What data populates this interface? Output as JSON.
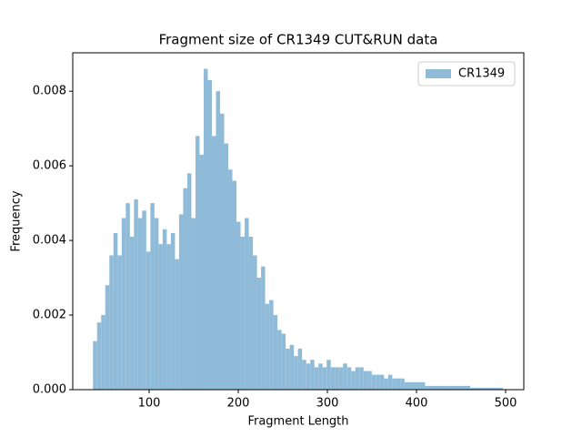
{
  "chart_data": {
    "type": "histogram",
    "title": "Fragment size of CR1349 CUT&RUN data",
    "xlabel": "Fragment Length",
    "ylabel": "Frequency",
    "bins": [
      37,
      41.6,
      46.2,
      50.8,
      55.4,
      60,
      64.6,
      69.2,
      73.8,
      78.4,
      83,
      87.6,
      92.2,
      96.8,
      101.4,
      106,
      110.6,
      115.2,
      119.8,
      124.4,
      129,
      133.6,
      138.2,
      142.8,
      147.4,
      152,
      156.6,
      161.2,
      165.8,
      170.4,
      175,
      179.6,
      184.2,
      188.8,
      193.4,
      198,
      202.6,
      207.2,
      211.8,
      216.4,
      221,
      225.6,
      230.2,
      234.8,
      239.4,
      244,
      248.6,
      253.2,
      257.8,
      262.4,
      267,
      271.6,
      276.2,
      280.8,
      285.4,
      290,
      294.6,
      299.2,
      303.8,
      308.4,
      313,
      317.6,
      322.2,
      326.8,
      331.4,
      336,
      340.6,
      345.2,
      349.8,
      354.4,
      359,
      363.6,
      368.2,
      372.8,
      377.4,
      382,
      386.6,
      391.2,
      395.8,
      400.4,
      405,
      409.6,
      414.2,
      418.8,
      423.4,
      428,
      432.6,
      437.2,
      441.8,
      446.4,
      451,
      455.6,
      460.2,
      464.8,
      469.4,
      474,
      478.6,
      483.2,
      487.8,
      492.4,
      497
    ],
    "series": [
      {
        "name": "CR1349",
        "color": "#8fbbd9",
        "values": [
          0.0013,
          0.0018,
          0.002,
          0.0028,
          0.0036,
          0.0042,
          0.0036,
          0.0046,
          0.005,
          0.0041,
          0.0051,
          0.0046,
          0.0048,
          0.0037,
          0.005,
          0.0046,
          0.0039,
          0.0043,
          0.0039,
          0.0042,
          0.0035,
          0.0047,
          0.0054,
          0.0058,
          0.0046,
          0.0068,
          0.0063,
          0.0086,
          0.0083,
          0.0068,
          0.008,
          0.0074,
          0.0066,
          0.0059,
          0.0056,
          0.0045,
          0.0041,
          0.0046,
          0.0041,
          0.0036,
          0.003,
          0.0033,
          0.0023,
          0.0024,
          0.002,
          0.0016,
          0.0015,
          0.0011,
          0.0012,
          0.0009,
          0.0011,
          0.0008,
          0.0007,
          0.0008,
          0.0006,
          0.0007,
          0.0006,
          0.0008,
          0.0006,
          0.0006,
          0.0006,
          0.0007,
          0.0006,
          0.0005,
          0.0006,
          0.0006,
          0.0005,
          0.0005,
          0.0004,
          0.0004,
          0.0004,
          0.0003,
          0.0004,
          0.0003,
          0.0003,
          0.0003,
          0.0002,
          0.0002,
          0.0002,
          0.0002,
          0.0002,
          0.0001,
          0.0001,
          0.0001,
          0.0001,
          0.0001,
          0.0001,
          0.0001,
          0.0001,
          0.0001,
          0.0001,
          0.0001,
          5e-05,
          5e-05,
          5e-05,
          5e-05,
          5e-05,
          5e-05,
          5e-05,
          5e-05
        ]
      }
    ],
    "xlim": [
      14.3,
      520.4
    ],
    "xticks": [
      100,
      200,
      300,
      400,
      500
    ],
    "ylim": [
      0,
      0.00903
    ],
    "yticks": [
      {
        "value": 0,
        "label": "0.000"
      },
      {
        "value": 0.002,
        "label": "0.002"
      },
      {
        "value": 0.004,
        "label": "0.004"
      },
      {
        "value": 0.006,
        "label": "0.006"
      },
      {
        "value": 0.008,
        "label": "0.008"
      }
    ],
    "legend": "upper right"
  }
}
